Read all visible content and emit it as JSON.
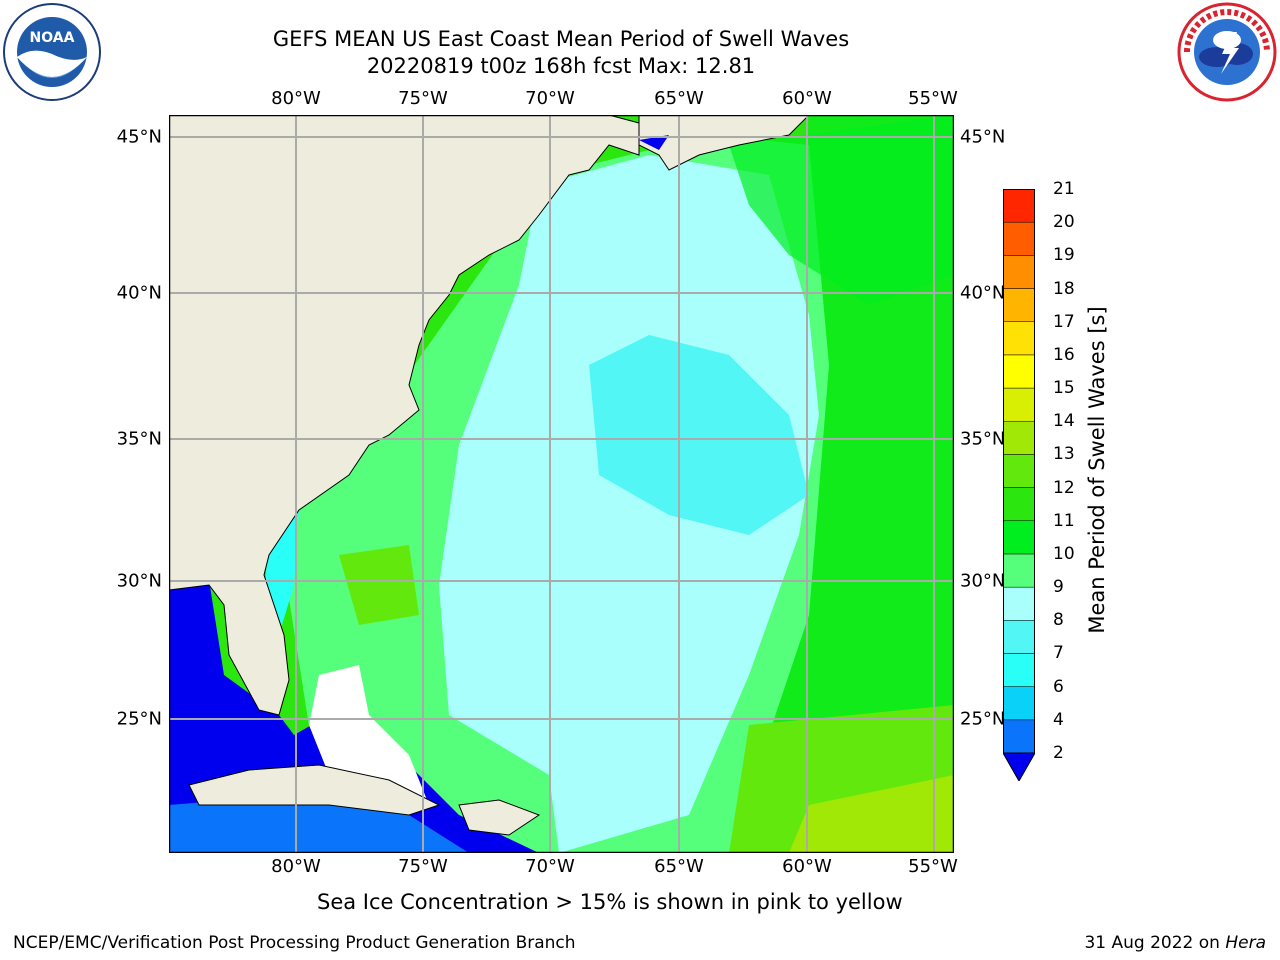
{
  "title": {
    "line1": "GEFS MEAN US East Coast Mean Period of Swell Waves",
    "line2": "20220819 t00z 168h fcst   Max: 12.81"
  },
  "logos": {
    "left": {
      "icon": "noaa-logo",
      "text": "NOAA",
      "ring": "NATIONAL OCEANIC AND ATMOSPHERIC ADMINISTRATION · U.S. DEPARTMENT OF COMMERCE"
    },
    "right": {
      "icon": "national-weather-service-logo",
      "ring": "NATIONAL WEATHER SERVICE"
    }
  },
  "map": {
    "lon_ticks": [
      "80°W",
      "75°W",
      "70°W",
      "65°W",
      "60°W",
      "55°W"
    ],
    "lat_ticks": [
      "45°N",
      "40°N",
      "35°N",
      "30°N",
      "25°N"
    ],
    "colors": {
      "land": "#eeecdd",
      "gridline": "#aaaaaa",
      "coastline": "#000000",
      "no_data": "#ffffff"
    }
  },
  "colorbar": {
    "label": "Mean Period of Swell Waves [s]",
    "ticks": [
      "2",
      "4",
      "6",
      "7",
      "8",
      "9",
      "10",
      "11",
      "12",
      "13",
      "14",
      "15",
      "16",
      "17",
      "18",
      "19",
      "20",
      "21"
    ],
    "colors": [
      "#0a74fa",
      "#0ad1f7",
      "#2afff7",
      "#52f7f5",
      "#a9fffb",
      "#55ff7c",
      "#00ee20",
      "#2be70f",
      "#62e80c",
      "#a2e806",
      "#d8ef04",
      "#ffff00",
      "#ffe105",
      "#ffb400",
      "#ff8f00",
      "#ff5d00",
      "#ff2600",
      "#ff0000"
    ],
    "extend_low_color": "#0000ee"
  },
  "chart_data": {
    "type": "heatmap",
    "title": "GEFS MEAN US East Coast Mean Period of Swell Waves",
    "subtitle": "20220819 t00z 168h fcst   Max: 12.81",
    "x_range": [
      -85,
      -55
    ],
    "y_range": [
      20.5,
      45.6
    ],
    "units": "s",
    "max": 12.81,
    "levels": [
      2,
      4,
      6,
      7,
      8,
      9,
      10,
      11,
      12,
      13,
      14,
      15,
      16,
      17,
      18,
      19,
      20,
      21
    ],
    "regions": [
      {
        "lon": -83,
        "lat": 24,
        "value": 3
      },
      {
        "lon": -80.5,
        "lat": 31,
        "value": 7
      },
      {
        "lon": -78,
        "lat": 30,
        "value": 11.5
      },
      {
        "lon": -76,
        "lat": 36,
        "value": 10
      },
      {
        "lon": -68,
        "lat": 42,
        "value": 8
      },
      {
        "lon": -65,
        "lat": 36,
        "value": 7
      },
      {
        "lon": -67,
        "lat": 28,
        "value": 8
      },
      {
        "lon": -62,
        "lat": 42,
        "value": 10
      },
      {
        "lon": -57,
        "lat": 35,
        "value": 10
      },
      {
        "lon": -58,
        "lat": 23,
        "value": 11.5
      },
      {
        "lon": -56,
        "lat": 22,
        "value": 12.5
      }
    ]
  },
  "note": "Sea Ice Concentration > 15% is shown in pink to yellow",
  "footer": {
    "left": "NCEP/EMC/Verification Post Processing Product Generation Branch",
    "right_prefix": "31 Aug 2022 on ",
    "right_machine": "Hera"
  }
}
